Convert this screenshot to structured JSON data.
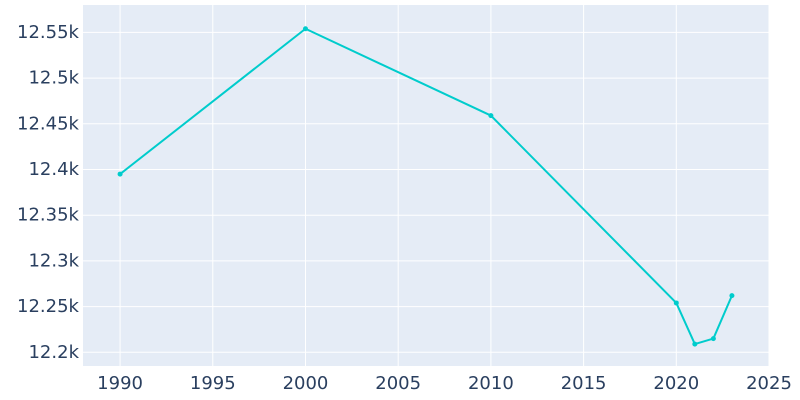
{
  "chart_data": {
    "type": "line",
    "title": "",
    "xlabel": "",
    "ylabel": "",
    "x": [
      1990,
      2000,
      2010,
      2020,
      2021,
      2022,
      2023
    ],
    "series": [
      {
        "values": [
          12395,
          12554,
          12459,
          12254,
          12209,
          12215,
          12262
        ]
      }
    ],
    "xlim": [
      1988,
      2025
    ],
    "ylim": [
      12185,
      12580
    ],
    "x_ticks": [
      1990,
      1995,
      2000,
      2005,
      2010,
      2015,
      2020,
      2025
    ],
    "x_tick_labels": [
      "1990",
      "1995",
      "2000",
      "2005",
      "2010",
      "2015",
      "2020",
      "2025"
    ],
    "y_ticks": [
      12200,
      12250,
      12300,
      12350,
      12400,
      12450,
      12500,
      12550
    ],
    "y_tick_labels": [
      "12.2k",
      "12.25k",
      "12.3k",
      "12.35k",
      "12.4k",
      "12.45k",
      "12.5k",
      "12.55k"
    ],
    "grid": true,
    "legend": "none",
    "colors": {
      "plot_background": "#e5ecf6",
      "grid": "#ffffff",
      "line": "#00cccc",
      "tick_text": "#2a3f5f"
    }
  }
}
